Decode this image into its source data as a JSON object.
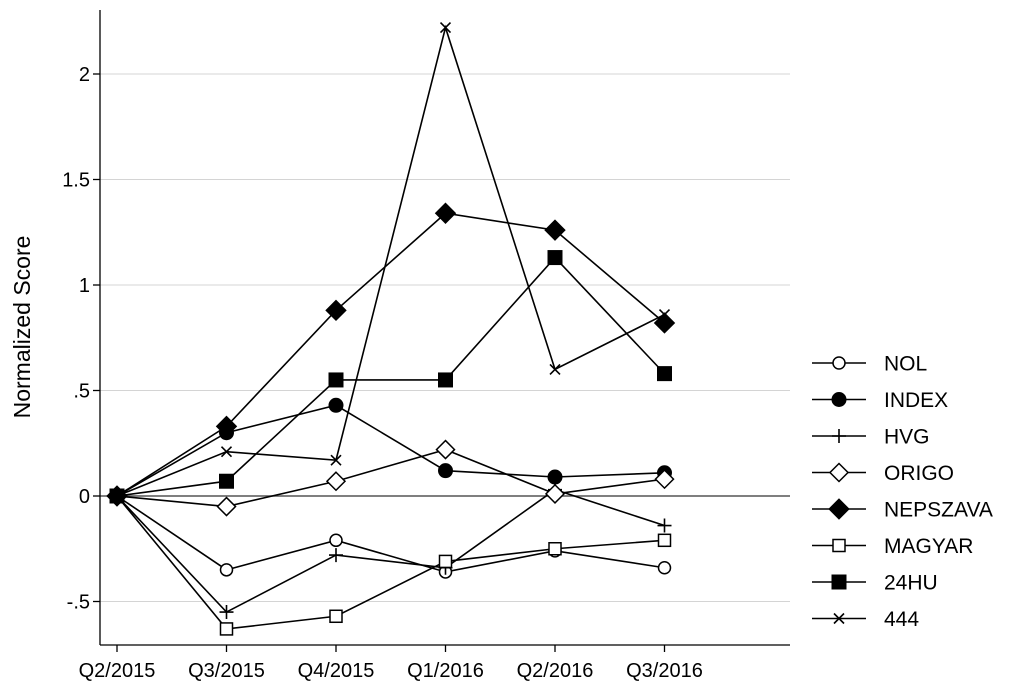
{
  "chart_data": {
    "type": "line",
    "title": "",
    "xlabel": "",
    "ylabel": "Normalized Score",
    "categories": [
      "Q2/2015",
      "Q3/2015",
      "Q4/2015",
      "Q1/2016",
      "Q2/2016",
      "Q3/2016"
    ],
    "yticks": [
      "-.5",
      "0",
      ".5",
      "1",
      "1.5",
      "2"
    ],
    "ylim": [
      -0.6,
      2.25
    ],
    "grid": true,
    "reference_line": 0,
    "legend_position": "right",
    "series": [
      {
        "name": "NOL",
        "marker": "circle-open",
        "values": [
          0,
          -0.35,
          -0.21,
          -0.36,
          -0.26,
          -0.34
        ]
      },
      {
        "name": "INDEX",
        "marker": "circle-filled",
        "values": [
          0,
          0.3,
          0.43,
          0.12,
          0.09,
          0.11
        ]
      },
      {
        "name": "HVG",
        "marker": "plus",
        "values": [
          0,
          -0.55,
          -0.28,
          -0.34,
          0.03,
          -0.14
        ]
      },
      {
        "name": "ORIGO",
        "marker": "diamond-open",
        "values": [
          0,
          -0.05,
          0.07,
          0.22,
          0.01,
          0.08
        ]
      },
      {
        "name": "NEPSZAVA",
        "marker": "diamond-filled",
        "values": [
          0,
          0.33,
          0.88,
          1.34,
          1.26,
          0.82
        ]
      },
      {
        "name": "MAGYAR",
        "marker": "square-open",
        "values": [
          0,
          -0.63,
          -0.57,
          -0.31,
          -0.25,
          -0.21
        ]
      },
      {
        "name": "24HU",
        "marker": "square-filled",
        "values": [
          0,
          0.07,
          0.55,
          0.55,
          1.13,
          0.58
        ]
      },
      {
        "name": "444",
        "marker": "x",
        "values": [
          0,
          0.21,
          0.17,
          2.22,
          0.6,
          0.86
        ]
      }
    ]
  }
}
